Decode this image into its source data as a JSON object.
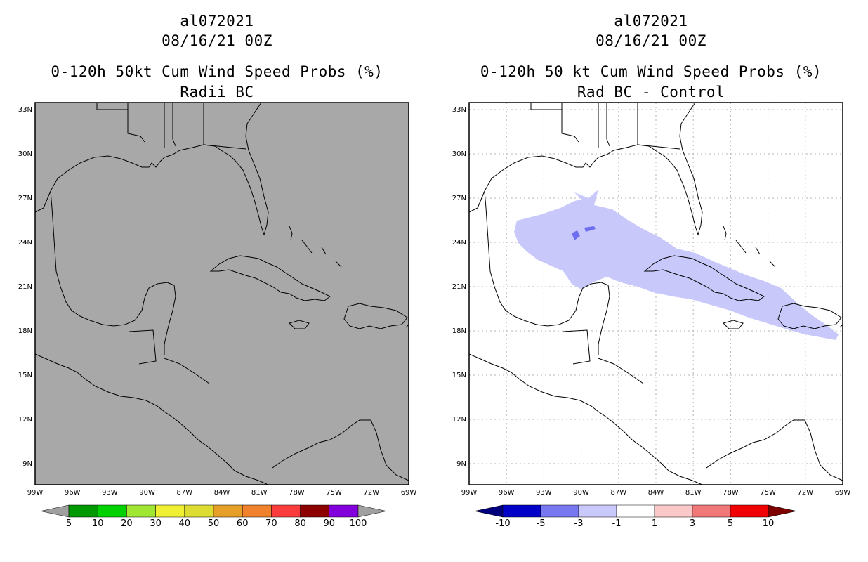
{
  "left": {
    "storm_id": "al072021",
    "datetime": "08/16/21 00Z",
    "title": "0-120h 50kt Cum Wind Speed Probs (%)",
    "subtitle": "Radii BC",
    "map_fill": "#a8a8a8",
    "colorbar": {
      "colors": [
        "#009900",
        "#00d200",
        "#a0e632",
        "#f0f032",
        "#dcdc32",
        "#e6a028",
        "#f0822d",
        "#fa3c3c",
        "#8c0000",
        "#8200dc"
      ],
      "end_color": "#a0a0a0",
      "labels": [
        "5",
        "10",
        "20",
        "30",
        "40",
        "50",
        "60",
        "70",
        "80",
        "90",
        "100"
      ]
    }
  },
  "right": {
    "storm_id": "al072021",
    "datetime": "08/16/21 00Z",
    "title": "0-120h 50 kt Cum Wind Speed Probs (%)",
    "subtitle": "Rad BC - Control",
    "map_fill": "#ffffff",
    "shading_color": "#c8c8fa",
    "shading_dark_color": "#6e6ef0",
    "colorbar": {
      "colors": [
        "#0000c8",
        "#7878f0",
        "#c8c8fa",
        "#ffffff",
        "#fac8c8",
        "#f07878",
        "#f00000"
      ],
      "left_end_color": "#00007d",
      "right_end_color": "#7d0000",
      "labels": [
        "-10",
        "-5",
        "-3",
        "-1",
        "1",
        "3",
        "5",
        "10"
      ]
    }
  },
  "axes": {
    "lat_labels": [
      "33N",
      "30N",
      "27N",
      "24N",
      "21N",
      "18N",
      "15N",
      "12N",
      "9N"
    ],
    "lon_labels": [
      "99W",
      "96W",
      "93W",
      "90W",
      "87W",
      "84W",
      "81W",
      "78W",
      "75W",
      "72W",
      "69W"
    ]
  }
}
